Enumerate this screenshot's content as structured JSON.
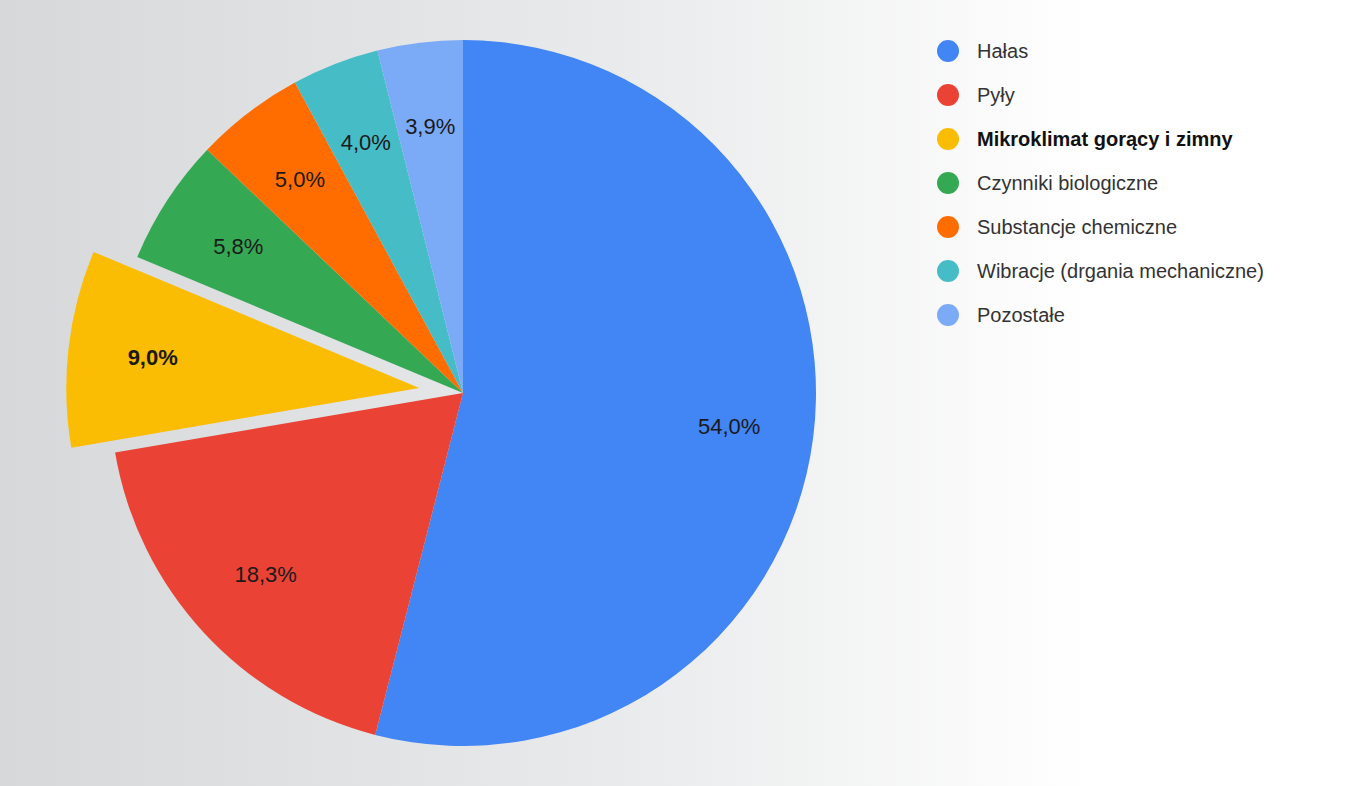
{
  "chart_data": {
    "type": "pie",
    "categories": [
      "Hałas",
      "Pyły",
      "Mikroklimat gorący i zimny",
      "Czynniki biologiczne",
      "Substancje chemiczne",
      "Wibracje (drgania mechaniczne)",
      "Pozostałe"
    ],
    "values": [
      54.0,
      18.3,
      9.0,
      5.8,
      5.0,
      4.0,
      3.9
    ],
    "value_labels": [
      "54,0%",
      "18,3%",
      "9,0%",
      "5,8%",
      "5,0%",
      "4,0%",
      "3,9%"
    ],
    "colors": [
      "#4285f4",
      "#ea4335",
      "#fbbc04",
      "#34a853",
      "#ff6d01",
      "#46bdc6",
      "#7baaf7"
    ],
    "data_labels": true,
    "legend": "top-right"
  }
}
